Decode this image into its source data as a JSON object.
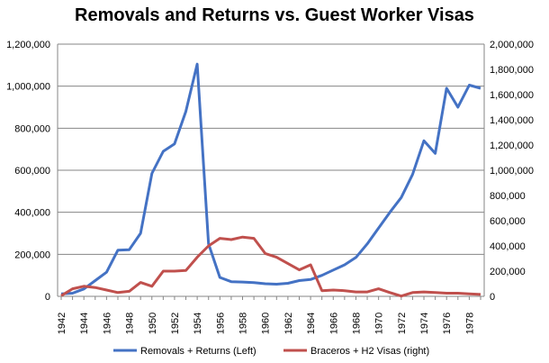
{
  "chart_data": {
    "type": "line",
    "title": "Removals and Returns vs. Guest Worker Visas",
    "xlabel": "",
    "ylabel_left": "",
    "ylabel_right": "",
    "x": [
      1942,
      1943,
      1944,
      1945,
      1946,
      1947,
      1948,
      1949,
      1950,
      1951,
      1952,
      1953,
      1954,
      1955,
      1956,
      1957,
      1958,
      1959,
      1960,
      1961,
      1962,
      1963,
      1964,
      1965,
      1966,
      1967,
      1968,
      1969,
      1970,
      1971,
      1972,
      1973,
      1974,
      1975,
      1976,
      1977,
      1978,
      1979
    ],
    "x_tick_labels": [
      "1942",
      "1944",
      "1946",
      "1948",
      "1950",
      "1952",
      "1954",
      "1956",
      "1958",
      "1960",
      "1962",
      "1964",
      "1966",
      "1968",
      "1970",
      "1972",
      "1974",
      "1976",
      "1978"
    ],
    "ylim_left": [
      0,
      1200000
    ],
    "ylim_right": [
      0,
      2000000
    ],
    "y_left_tick_labels": [
      "0",
      "200,000",
      "400,000",
      "600,000",
      "800,000",
      "1,000,000",
      "1,200,000"
    ],
    "y_right_tick_labels": [
      "0",
      "200,000",
      "400,000",
      "600,000",
      "800,000",
      "1,000,000",
      "1,200,000",
      "1,400,000",
      "1,600,000",
      "1,800,000",
      "2,000,000"
    ],
    "grid": "horizontal",
    "legend_position": "bottom",
    "series": [
      {
        "name": "Removals + Returns (Left)",
        "axis": "left",
        "color": "#4472c4",
        "values": [
          12000,
          15000,
          35000,
          75000,
          115000,
          220000,
          222000,
          300000,
          585000,
          690000,
          725000,
          880000,
          1105000,
          250000,
          90000,
          70000,
          68000,
          65000,
          60000,
          58000,
          62000,
          75000,
          80000,
          100000,
          125000,
          150000,
          185000,
          250000,
          325000,
          400000,
          470000,
          580000,
          740000,
          680000,
          990000,
          900000,
          1005000,
          990000
        ]
      },
      {
        "name": "Braceros + H2 Visas (right)",
        "axis": "right",
        "color": "#c0504d",
        "values": [
          5000,
          60000,
          80000,
          70000,
          50000,
          30000,
          40000,
          110000,
          80000,
          200000,
          200000,
          205000,
          310000,
          400000,
          460000,
          450000,
          470000,
          460000,
          340000,
          310000,
          260000,
          210000,
          250000,
          45000,
          50000,
          45000,
          35000,
          35000,
          60000,
          30000,
          2000,
          30000,
          35000,
          30000,
          25000,
          25000,
          20000,
          15000
        ]
      }
    ]
  }
}
